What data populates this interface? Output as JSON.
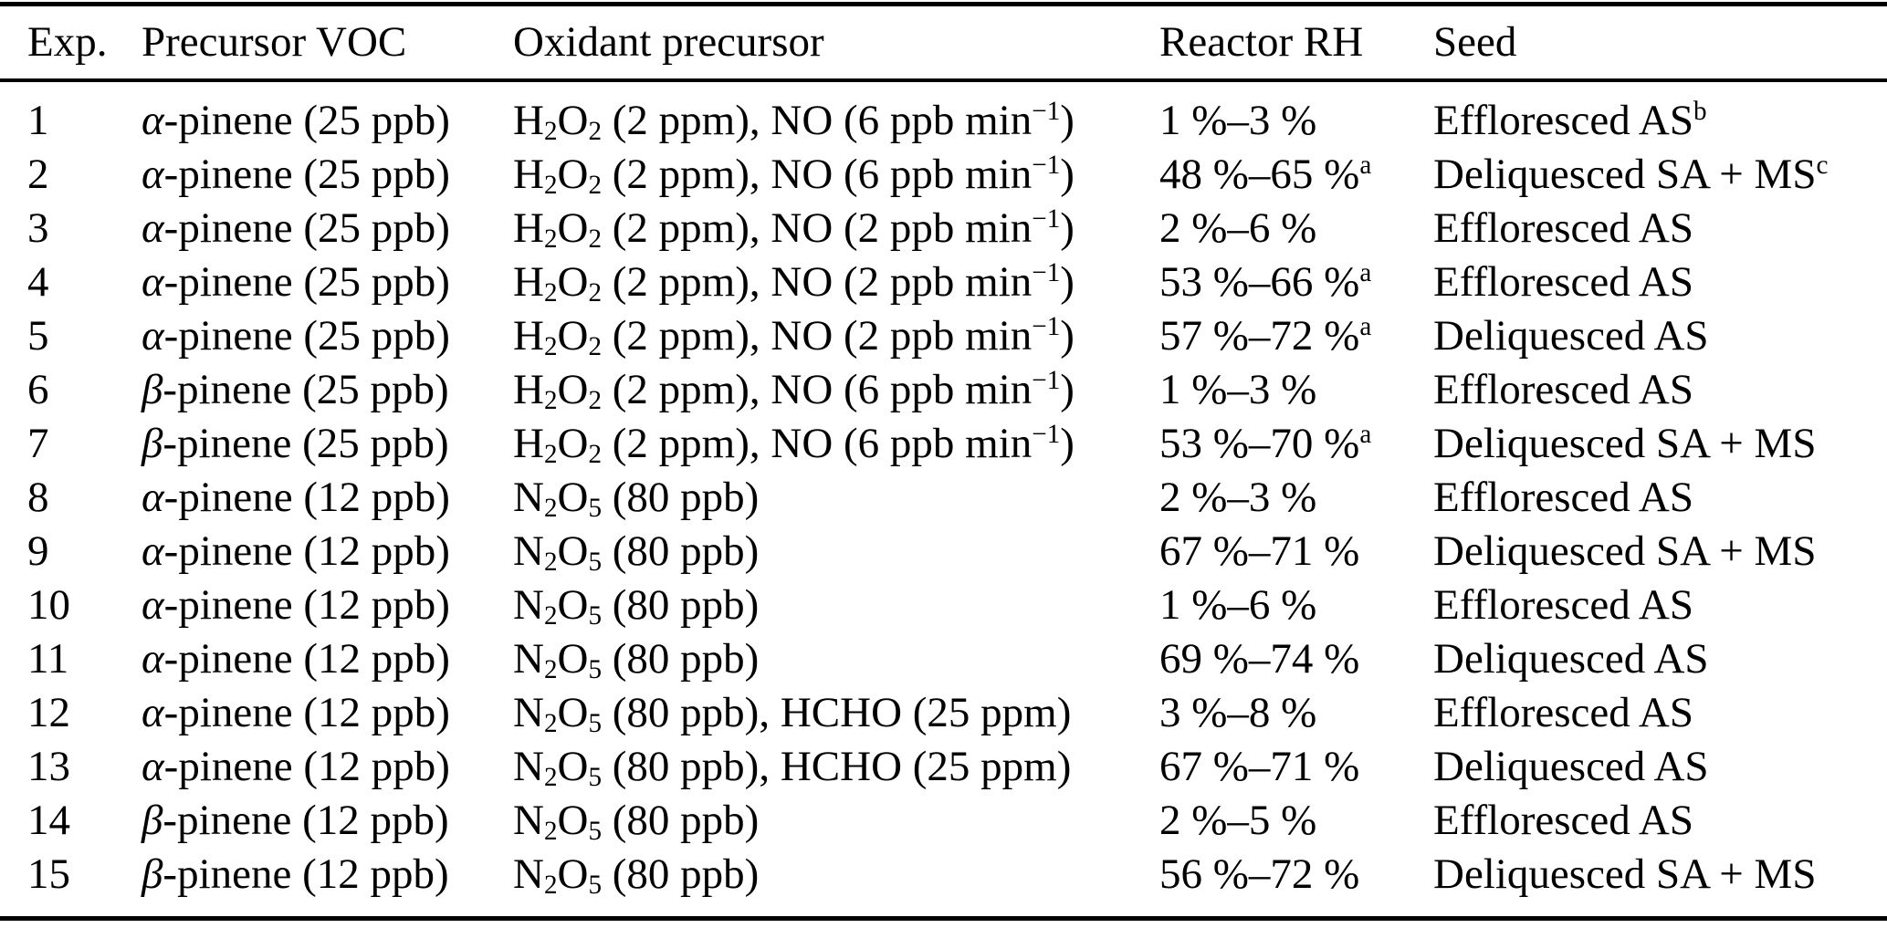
{
  "colors": {
    "text": "#000000",
    "background": "#ffffff",
    "rule": "#000000"
  },
  "table": {
    "columns": [
      {
        "key": "exp",
        "label": "Exp."
      },
      {
        "key": "voc",
        "label": "Precursor VOC"
      },
      {
        "key": "oxidant",
        "label": "Oxidant precursor"
      },
      {
        "key": "rh",
        "label": "Reactor RH"
      },
      {
        "key": "seed",
        "label": "Seed"
      }
    ],
    "rows": [
      {
        "exp": "1",
        "voc": [
          [
            "α",
            "i"
          ],
          [
            "-pinene (25 ppb)",
            "t"
          ]
        ],
        "oxidant": [
          [
            "H",
            "t"
          ],
          [
            "2",
            "sub"
          ],
          [
            "O",
            "t"
          ],
          [
            "2",
            "sub"
          ],
          [
            " (2 ppm), NO (6 ppb min",
            "t"
          ],
          [
            "−1",
            "sup"
          ],
          [
            ")",
            "t"
          ]
        ],
        "rh": [
          [
            "1 %–3 %",
            "t"
          ]
        ],
        "seed": [
          [
            "Effloresced AS",
            "t"
          ],
          [
            "b",
            "sup"
          ]
        ]
      },
      {
        "exp": "2",
        "voc": [
          [
            "α",
            "i"
          ],
          [
            "-pinene (25 ppb)",
            "t"
          ]
        ],
        "oxidant": [
          [
            "H",
            "t"
          ],
          [
            "2",
            "sub"
          ],
          [
            "O",
            "t"
          ],
          [
            "2",
            "sub"
          ],
          [
            " (2 ppm), NO (6 ppb min",
            "t"
          ],
          [
            "−1",
            "sup"
          ],
          [
            ")",
            "t"
          ]
        ],
        "rh": [
          [
            "48 %–65 %",
            "t"
          ],
          [
            "a",
            "sup"
          ]
        ],
        "seed": [
          [
            "Deliquesced SA + MS",
            "t"
          ],
          [
            "c",
            "sup"
          ]
        ]
      },
      {
        "exp": "3",
        "voc": [
          [
            "α",
            "i"
          ],
          [
            "-pinene (25 ppb)",
            "t"
          ]
        ],
        "oxidant": [
          [
            "H",
            "t"
          ],
          [
            "2",
            "sub"
          ],
          [
            "O",
            "t"
          ],
          [
            "2",
            "sub"
          ],
          [
            " (2 ppm), NO (2 ppb min",
            "t"
          ],
          [
            "−1",
            "sup"
          ],
          [
            ")",
            "t"
          ]
        ],
        "rh": [
          [
            "2 %–6 %",
            "t"
          ]
        ],
        "seed": [
          [
            "Effloresced AS",
            "t"
          ]
        ]
      },
      {
        "exp": "4",
        "voc": [
          [
            "α",
            "i"
          ],
          [
            "-pinene (25 ppb)",
            "t"
          ]
        ],
        "oxidant": [
          [
            "H",
            "t"
          ],
          [
            "2",
            "sub"
          ],
          [
            "O",
            "t"
          ],
          [
            "2",
            "sub"
          ],
          [
            " (2 ppm), NO (2 ppb min",
            "t"
          ],
          [
            "−1",
            "sup"
          ],
          [
            ")",
            "t"
          ]
        ],
        "rh": [
          [
            "53 %–66 %",
            "t"
          ],
          [
            "a",
            "sup"
          ]
        ],
        "seed": [
          [
            "Effloresced AS",
            "t"
          ]
        ]
      },
      {
        "exp": "5",
        "voc": [
          [
            "α",
            "i"
          ],
          [
            "-pinene (25 ppb)",
            "t"
          ]
        ],
        "oxidant": [
          [
            "H",
            "t"
          ],
          [
            "2",
            "sub"
          ],
          [
            "O",
            "t"
          ],
          [
            "2",
            "sub"
          ],
          [
            " (2 ppm), NO (2 ppb min",
            "t"
          ],
          [
            "−1",
            "sup"
          ],
          [
            ")",
            "t"
          ]
        ],
        "rh": [
          [
            "57 %–72 %",
            "t"
          ],
          [
            "a",
            "sup"
          ]
        ],
        "seed": [
          [
            "Deliquesced AS",
            "t"
          ]
        ]
      },
      {
        "exp": "6",
        "voc": [
          [
            "β",
            "i"
          ],
          [
            "-pinene (25 ppb)",
            "t"
          ]
        ],
        "oxidant": [
          [
            "H",
            "t"
          ],
          [
            "2",
            "sub"
          ],
          [
            "O",
            "t"
          ],
          [
            "2",
            "sub"
          ],
          [
            " (2 ppm), NO (6 ppb min",
            "t"
          ],
          [
            "−1",
            "sup"
          ],
          [
            ")",
            "t"
          ]
        ],
        "rh": [
          [
            "1 %–3 %",
            "t"
          ]
        ],
        "seed": [
          [
            "Effloresced AS",
            "t"
          ]
        ]
      },
      {
        "exp": "7",
        "voc": [
          [
            "β",
            "i"
          ],
          [
            "-pinene (25 ppb)",
            "t"
          ]
        ],
        "oxidant": [
          [
            "H",
            "t"
          ],
          [
            "2",
            "sub"
          ],
          [
            "O",
            "t"
          ],
          [
            "2",
            "sub"
          ],
          [
            " (2 ppm), NO (6 ppb min",
            "t"
          ],
          [
            "−1",
            "sup"
          ],
          [
            ")",
            "t"
          ]
        ],
        "rh": [
          [
            "53 %–70 %",
            "t"
          ],
          [
            "a",
            "sup"
          ]
        ],
        "seed": [
          [
            "Deliquesced SA + MS",
            "t"
          ]
        ]
      },
      {
        "exp": "8",
        "voc": [
          [
            "α",
            "i"
          ],
          [
            "-pinene (12 ppb)",
            "t"
          ]
        ],
        "oxidant": [
          [
            "N",
            "t"
          ],
          [
            "2",
            "sub"
          ],
          [
            "O",
            "t"
          ],
          [
            "5",
            "sub"
          ],
          [
            " (80 ppb)",
            "t"
          ]
        ],
        "rh": [
          [
            "2 %–3 %",
            "t"
          ]
        ],
        "seed": [
          [
            "Effloresced AS",
            "t"
          ]
        ]
      },
      {
        "exp": "9",
        "voc": [
          [
            "α",
            "i"
          ],
          [
            "-pinene (12 ppb)",
            "t"
          ]
        ],
        "oxidant": [
          [
            "N",
            "t"
          ],
          [
            "2",
            "sub"
          ],
          [
            "O",
            "t"
          ],
          [
            "5",
            "sub"
          ],
          [
            " (80 ppb)",
            "t"
          ]
        ],
        "rh": [
          [
            "67 %–71 %",
            "t"
          ]
        ],
        "seed": [
          [
            "Deliquesced SA + MS",
            "t"
          ]
        ]
      },
      {
        "exp": "10",
        "voc": [
          [
            "α",
            "i"
          ],
          [
            "-pinene (12 ppb)",
            "t"
          ]
        ],
        "oxidant": [
          [
            "N",
            "t"
          ],
          [
            "2",
            "sub"
          ],
          [
            "O",
            "t"
          ],
          [
            "5",
            "sub"
          ],
          [
            " (80 ppb)",
            "t"
          ]
        ],
        "rh": [
          [
            "1 %–6 %",
            "t"
          ]
        ],
        "seed": [
          [
            "Effloresced AS",
            "t"
          ]
        ]
      },
      {
        "exp": "11",
        "voc": [
          [
            "α",
            "i"
          ],
          [
            "-pinene (12 ppb)",
            "t"
          ]
        ],
        "oxidant": [
          [
            "N",
            "t"
          ],
          [
            "2",
            "sub"
          ],
          [
            "O",
            "t"
          ],
          [
            "5",
            "sub"
          ],
          [
            " (80 ppb)",
            "t"
          ]
        ],
        "rh": [
          [
            "69 %–74 %",
            "t"
          ]
        ],
        "seed": [
          [
            "Deliquesced AS",
            "t"
          ]
        ]
      },
      {
        "exp": "12",
        "voc": [
          [
            "α",
            "i"
          ],
          [
            "-pinene (12 ppb)",
            "t"
          ]
        ],
        "oxidant": [
          [
            "N",
            "t"
          ],
          [
            "2",
            "sub"
          ],
          [
            "O",
            "t"
          ],
          [
            "5",
            "sub"
          ],
          [
            " (80 ppb), HCHO (25 ppm)",
            "t"
          ]
        ],
        "rh": [
          [
            "3 %–8 %",
            "t"
          ]
        ],
        "seed": [
          [
            "Effloresced AS",
            "t"
          ]
        ]
      },
      {
        "exp": "13",
        "voc": [
          [
            "α",
            "i"
          ],
          [
            "-pinene (12 ppb)",
            "t"
          ]
        ],
        "oxidant": [
          [
            "N",
            "t"
          ],
          [
            "2",
            "sub"
          ],
          [
            "O",
            "t"
          ],
          [
            "5",
            "sub"
          ],
          [
            " (80 ppb), HCHO (25 ppm)",
            "t"
          ]
        ],
        "rh": [
          [
            "67 %–71 %",
            "t"
          ]
        ],
        "seed": [
          [
            "Deliquesced AS",
            "t"
          ]
        ]
      },
      {
        "exp": "14",
        "voc": [
          [
            "β",
            "i"
          ],
          [
            "-pinene (12 ppb)",
            "t"
          ]
        ],
        "oxidant": [
          [
            "N",
            "t"
          ],
          [
            "2",
            "sub"
          ],
          [
            "O",
            "t"
          ],
          [
            "5",
            "sub"
          ],
          [
            " (80 ppb)",
            "t"
          ]
        ],
        "rh": [
          [
            "2 %–5 %",
            "t"
          ]
        ],
        "seed": [
          [
            "Effloresced AS",
            "t"
          ]
        ]
      },
      {
        "exp": "15",
        "voc": [
          [
            "β",
            "i"
          ],
          [
            "-pinene (12 ppb)",
            "t"
          ]
        ],
        "oxidant": [
          [
            "N",
            "t"
          ],
          [
            "2",
            "sub"
          ],
          [
            "O",
            "t"
          ],
          [
            "5",
            "sub"
          ],
          [
            " (80 ppb)",
            "t"
          ]
        ],
        "rh": [
          [
            "56 %–72 %",
            "t"
          ]
        ],
        "seed": [
          [
            "Deliquesced SA + MS",
            "t"
          ]
        ]
      }
    ]
  }
}
